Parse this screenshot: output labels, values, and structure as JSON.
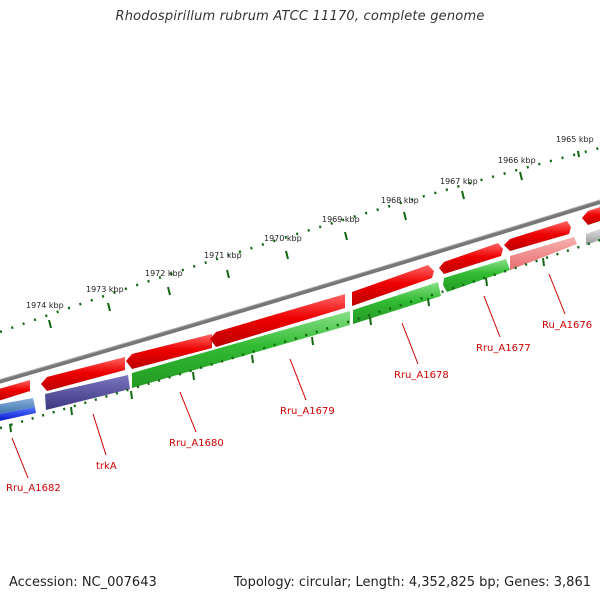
{
  "header": {
    "title": "Rhodospirillum rubrum ATCC 11170, complete genome"
  },
  "footer": {
    "accession": "Accession: NC_007643",
    "summary": "Topology: circular; Length: 4,352,825 bp; Genes: 3,861"
  },
  "ruler": {
    "labels": [
      "1965 kbp",
      "1966 kbp",
      "1967 kbp",
      "1968 kbp",
      "1969 kbp",
      "1970 kbp",
      "1971 kbp",
      "1972 kbp",
      "1973 kbp",
      "1974 kbp"
    ]
  },
  "genes": {
    "labels": [
      "Ru_A1676",
      "Rru_A1677",
      "Rru_A1678",
      "Rru_A1679",
      "Rru_A1680",
      "trkA",
      "Rru_A1682"
    ]
  },
  "colors": {
    "forward_cds": "#ee0000",
    "reverse_cds": "#33bb33",
    "pseudo_light": "#f08a8a",
    "grey_track": "#999999",
    "blue_track": "#0022ee",
    "light_blue": "#4d8ac0",
    "purple": "#4a4690",
    "backbone": "#777777",
    "tick": "#116611"
  }
}
